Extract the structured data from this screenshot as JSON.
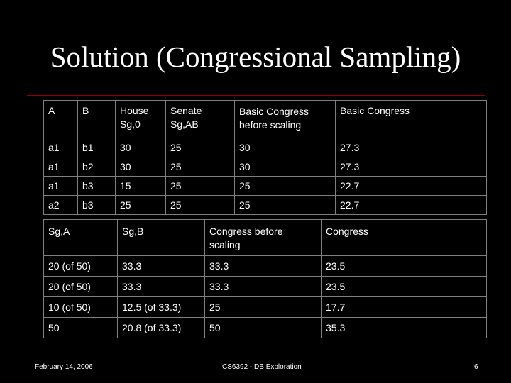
{
  "slide": {
    "title": "Solution (Congressional Sampling)"
  },
  "table1": {
    "headers": [
      {
        "line1": "A",
        "line2": ""
      },
      {
        "line1": "B",
        "line2": ""
      },
      {
        "line1": "House",
        "line2": "Sg,0"
      },
      {
        "line1": "Senate",
        "line2": "Sg,AB"
      },
      {
        "line1": "Basic Congress",
        "line2": "before scaling"
      },
      {
        "line1": "Basic Congress",
        "line2": ""
      }
    ],
    "rows": [
      [
        "a1",
        "b1",
        "30",
        "25",
        "30",
        "27.3"
      ],
      [
        "a1",
        "b2",
        "30",
        "25",
        "30",
        "27.3"
      ],
      [
        "a1",
        "b3",
        "15",
        "25",
        "25",
        "22.7"
      ],
      [
        "a2",
        "b3",
        "25",
        "25",
        "25",
        "22.7"
      ]
    ]
  },
  "table2": {
    "headers": [
      {
        "line1": "Sg,A",
        "line2": ""
      },
      {
        "line1": "Sg,B",
        "line2": ""
      },
      {
        "line1": "Congress before",
        "line2": "scaling"
      },
      {
        "line1": "Congress",
        "line2": ""
      }
    ],
    "rows": [
      [
        "20 (of 50)",
        "33.3",
        "33.3",
        "23.5"
      ],
      [
        "20 (of 50)",
        "33.3",
        "33.3",
        "23.5"
      ],
      [
        "10 (of 50)",
        "12.5 (of 33.3)",
        "25",
        "17.7"
      ],
      [
        "50",
        "20.8 (of 33.3)",
        "50",
        "35.3"
      ]
    ]
  },
  "footer": {
    "date": "February 14, 2006",
    "course": "CS6392 - DB Exploration",
    "page": "6"
  }
}
